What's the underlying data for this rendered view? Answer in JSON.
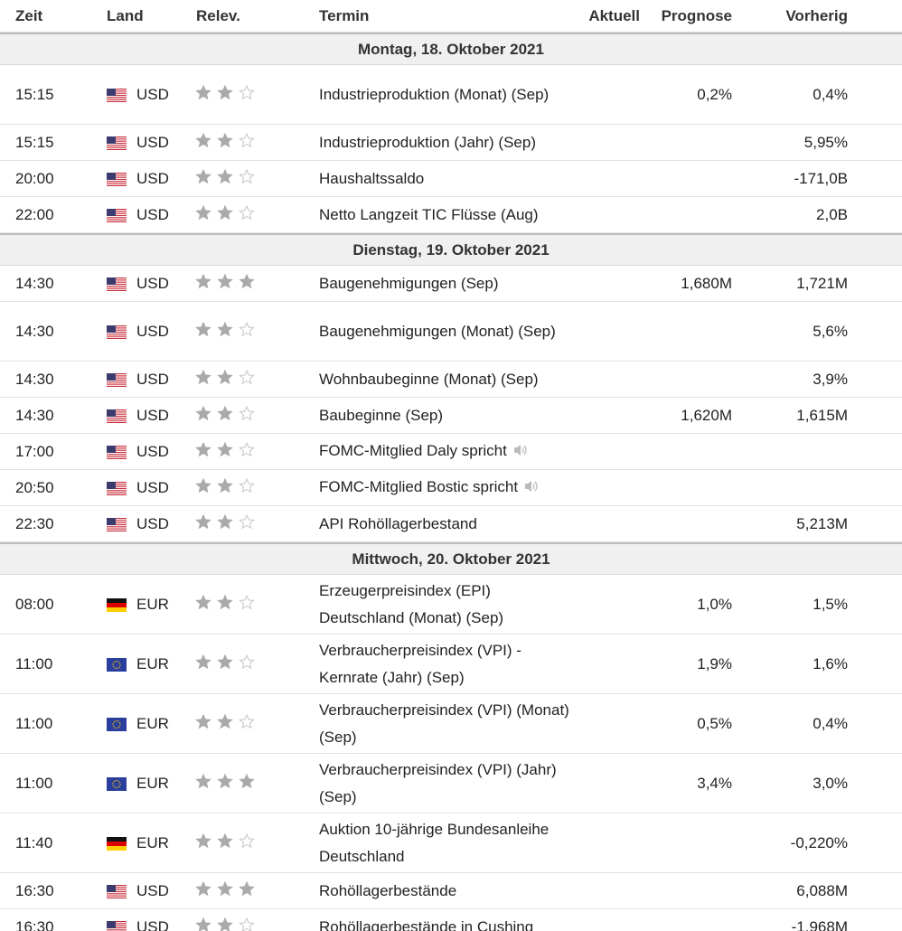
{
  "headers": {
    "time": "Zeit",
    "country": "Land",
    "relevance": "Relev.",
    "event": "Termin",
    "actual": "Aktuell",
    "forecast": "Prognose",
    "previous": "Vorherig"
  },
  "days": [
    {
      "label": "Montag, 18. Oktober 2021",
      "rows": [
        {
          "time": "15:15",
          "flag": "us",
          "cur": "USD",
          "stars": 2,
          "title": "Industrieproduktion (Monat) (Sep)",
          "actual": "",
          "forecast": "0,2%",
          "previous": "0,4%",
          "tall": true
        },
        {
          "time": "15:15",
          "flag": "us",
          "cur": "USD",
          "stars": 2,
          "title": "Industrieproduktion (Jahr) (Sep)",
          "actual": "",
          "forecast": "",
          "previous": "5,95%"
        },
        {
          "time": "20:00",
          "flag": "us",
          "cur": "USD",
          "stars": 2,
          "title": "Haushaltssaldo",
          "actual": "",
          "forecast": "",
          "previous": "-171,0B"
        },
        {
          "time": "22:00",
          "flag": "us",
          "cur": "USD",
          "stars": 2,
          "title": "Netto Langzeit TIC Flüsse (Aug)",
          "actual": "",
          "forecast": "",
          "previous": "2,0B"
        }
      ]
    },
    {
      "label": "Dienstag, 19. Oktober 2021",
      "rows": [
        {
          "time": "14:30",
          "flag": "us",
          "cur": "USD",
          "stars": 3,
          "title": "Baugenehmigungen (Sep)",
          "actual": "",
          "forecast": "1,680M",
          "previous": "1,721M"
        },
        {
          "time": "14:30",
          "flag": "us",
          "cur": "USD",
          "stars": 2,
          "title": "Baugenehmigungen (Monat) (Sep)",
          "actual": "",
          "forecast": "",
          "previous": "5,6%",
          "tall": true
        },
        {
          "time": "14:30",
          "flag": "us",
          "cur": "USD",
          "stars": 2,
          "title": "Wohnbaubeginne (Monat) (Sep)",
          "actual": "",
          "forecast": "",
          "previous": "3,9%"
        },
        {
          "time": "14:30",
          "flag": "us",
          "cur": "USD",
          "stars": 2,
          "title": "Baubeginne (Sep)",
          "actual": "",
          "forecast": "1,620M",
          "previous": "1,615M"
        },
        {
          "time": "17:00",
          "flag": "us",
          "cur": "USD",
          "stars": 2,
          "title": "FOMC-Mitglied Daly spricht",
          "actual": "",
          "forecast": "",
          "previous": "",
          "speech": true
        },
        {
          "time": "20:50",
          "flag": "us",
          "cur": "USD",
          "stars": 2,
          "title": "FOMC-Mitglied Bostic spricht",
          "actual": "",
          "forecast": "",
          "previous": "",
          "speech": true
        },
        {
          "time": "22:30",
          "flag": "us",
          "cur": "USD",
          "stars": 2,
          "title": "API Rohöllagerbestand",
          "actual": "",
          "forecast": "",
          "previous": "5,213M"
        }
      ]
    },
    {
      "label": "Mittwoch, 20. Oktober 2021",
      "rows": [
        {
          "time": "08:00",
          "flag": "de",
          "cur": "EUR",
          "stars": 2,
          "title": "Erzeugerpreisindex (EPI) Deutschland (Monat) (Sep)",
          "actual": "",
          "forecast": "1,0%",
          "previous": "1,5%",
          "tall": true
        },
        {
          "time": "11:00",
          "flag": "eu",
          "cur": "EUR",
          "stars": 2,
          "title": "Verbraucherpreisindex (VPI) - Kernrate (Jahr) (Sep)",
          "actual": "",
          "forecast": "1,9%",
          "previous": "1,6%",
          "tall": true
        },
        {
          "time": "11:00",
          "flag": "eu",
          "cur": "EUR",
          "stars": 2,
          "title": "Verbraucherpreisindex (VPI) (Monat) (Sep)",
          "actual": "",
          "forecast": "0,5%",
          "previous": "0,4%",
          "tall": true
        },
        {
          "time": "11:00",
          "flag": "eu",
          "cur": "EUR",
          "stars": 3,
          "title": "Verbraucherpreisindex (VPI) (Jahr) (Sep)",
          "actual": "",
          "forecast": "3,4%",
          "previous": "3,0%",
          "tall": true
        },
        {
          "time": "11:40",
          "flag": "de",
          "cur": "EUR",
          "stars": 2,
          "title": "Auktion 10-jährige Bundesanleihe Deutschland",
          "actual": "",
          "forecast": "",
          "previous": "-0,220%",
          "tall": true
        },
        {
          "time": "16:30",
          "flag": "us",
          "cur": "USD",
          "stars": 3,
          "title": "Rohöllagerbestände",
          "actual": "",
          "forecast": "",
          "previous": "6,088M"
        },
        {
          "time": "16:30",
          "flag": "us",
          "cur": "USD",
          "stars": 2,
          "title": "Rohöllagerbestände in Cushing",
          "actual": "",
          "forecast": "",
          "previous": "-1,968M"
        }
      ]
    }
  ],
  "icons": {
    "flag_us": "flag-us-icon",
    "flag_de": "flag-de-icon",
    "flag_eu": "flag-eu-icon",
    "star": "star-icon",
    "speaker": "speaker-icon"
  },
  "colors": {
    "star_filled": "#aaaaaa",
    "star_empty": "#c8c8c8",
    "day_bg": "#f0f0f0"
  }
}
